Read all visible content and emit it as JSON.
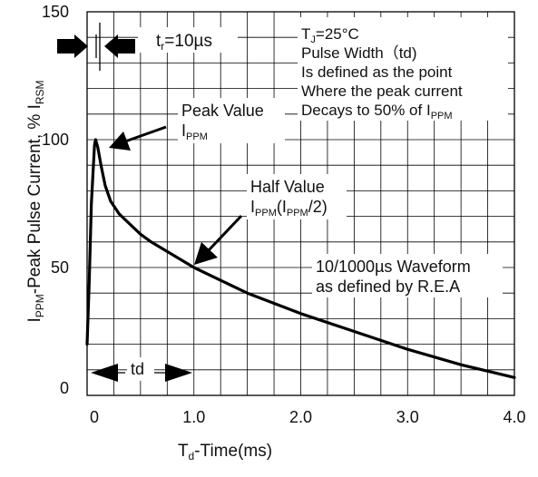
{
  "chart_data": {
    "type": "line",
    "xlabel": "Td-Time(ms)",
    "xlabel_parts": {
      "main": "T",
      "sub": "d",
      "rest": "-Time(ms)"
    },
    "ylabel": "IPPM-Peak Pulse Current, % IRSM",
    "ylabel_parts": {
      "p1": "I",
      "s1": "PPM",
      "p2": "-Peak Pulse Current, % I",
      "s2": "RSM"
    },
    "xlim": [
      0,
      4.0
    ],
    "ylim": [
      0,
      150
    ],
    "x_ticks": [
      "0",
      "1.0",
      "2.0",
      "3.0",
      "4.0"
    ],
    "y_ticks": [
      "0",
      "50",
      "100",
      "150"
    ],
    "x_tick_values": [
      0,
      1.0,
      2.0,
      3.0,
      4.0
    ],
    "y_tick_values": [
      0,
      50,
      100,
      150
    ],
    "grid": true,
    "series": [
      {
        "color": "#000000",
        "x": [
          0,
          0.02,
          0.04,
          0.07,
          0.08,
          0.1,
          0.13,
          0.17,
          0.22,
          0.3,
          0.4,
          0.5,
          0.6,
          0.8,
          1.0,
          1.2,
          1.5,
          2.0,
          2.5,
          3.0,
          3.5,
          4.0
        ],
        "y": [
          20,
          45,
          75,
          98,
          100,
          97,
          90,
          82,
          76,
          71,
          67,
          63,
          60,
          55,
          50,
          46,
          40,
          32,
          25,
          18,
          12,
          7
        ]
      }
    ],
    "annotations": {
      "tr": {
        "main": "t",
        "sub": "r",
        "rest": "=10µs"
      },
      "tj": {
        "main": "T",
        "sub": "J",
        "rest": "=25°C"
      },
      "pulse_width": "Pulse Width（td)",
      "defined_line": "Is defined as the point",
      "where_line": "Where the peak current",
      "decays": {
        "main": "Decays to 50% of I",
        "sub": "PPM"
      },
      "peak_value": "Peak Value",
      "peak_sub": {
        "main": "I",
        "sub": "PPM"
      },
      "half_value": "Half Value",
      "half_sub": {
        "p1": "I",
        "s1": "PPM",
        "p2": "(I",
        "s2": "PPM",
        "p3": "/2)"
      },
      "waveform_line1": "10/1000µs Waveform",
      "waveform_line2": "as defined by R.E.A",
      "td": "td"
    }
  }
}
